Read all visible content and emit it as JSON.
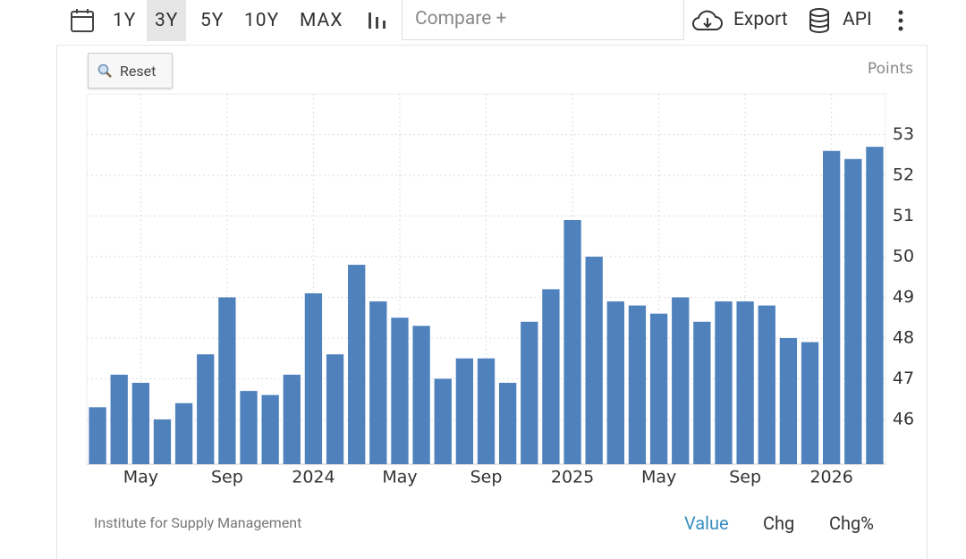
{
  "toolbar": {
    "ranges": [
      "1Y",
      "3Y",
      "5Y",
      "10Y",
      "MAX"
    ],
    "compare": "Compare +",
    "export": "Export",
    "api": "API"
  },
  "reset": "Reset",
  "source": "Institute for Supply Management",
  "tabs": [
    "Value",
    "Chg",
    "Chg%"
  ],
  "chart_data": {
    "type": "bar",
    "y_label": "Points",
    "color": "#4f81bd",
    "grid": true,
    "categories": [
      null,
      null,
      "May",
      null,
      null,
      null,
      "Sep",
      null,
      null,
      null,
      "2024",
      null,
      null,
      null,
      "May",
      null,
      null,
      null,
      "Sep",
      null,
      null,
      null,
      "2025",
      null,
      null,
      null,
      "May",
      null,
      null,
      null,
      "Sep",
      null,
      null,
      null,
      "2026",
      null,
      null
    ],
    "values": [
      46.3,
      47.1,
      46.9,
      46.0,
      46.4,
      47.6,
      49.0,
      46.7,
      46.6,
      47.1,
      49.1,
      47.6,
      49.8,
      48.9,
      48.5,
      48.3,
      47.0,
      47.5,
      47.5,
      46.9,
      48.4,
      49.2,
      50.9,
      50.0,
      48.9,
      48.8,
      48.6,
      49.0,
      48.4,
      48.9,
      48.9,
      48.8,
      48.0,
      47.9,
      52.6,
      52.4,
      52.7
    ],
    "ylim": [
      44.9,
      54.0
    ],
    "yticks": [
      46,
      47,
      48,
      49,
      50,
      51,
      52,
      53
    ]
  }
}
